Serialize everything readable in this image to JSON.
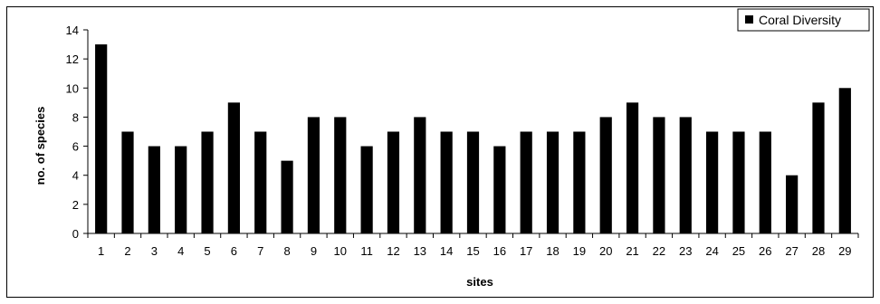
{
  "chart_data": {
    "type": "bar",
    "categories": [
      "1",
      "2",
      "3",
      "4",
      "5",
      "6",
      "7",
      "8",
      "9",
      "10",
      "11",
      "12",
      "13",
      "14",
      "15",
      "16",
      "17",
      "18",
      "19",
      "20",
      "21",
      "22",
      "23",
      "24",
      "25",
      "26",
      "27",
      "28",
      "29"
    ],
    "series": [
      {
        "name": "Coral Diversity",
        "values": [
          13,
          7,
          6,
          6,
          7,
          9,
          7,
          5,
          8,
          8,
          6,
          7,
          8,
          7,
          7,
          6,
          7,
          7,
          7,
          8,
          9,
          8,
          8,
          7,
          7,
          7,
          4,
          9,
          10
        ],
        "color": "#000000"
      }
    ],
    "title": "",
    "xlabel": "sites",
    "ylabel": "no. of species",
    "ylim": [
      0,
      14
    ],
    "yticks": [
      0,
      2,
      4,
      6,
      8,
      10,
      12,
      14
    ],
    "grid": false,
    "legend_position": "top-right"
  }
}
